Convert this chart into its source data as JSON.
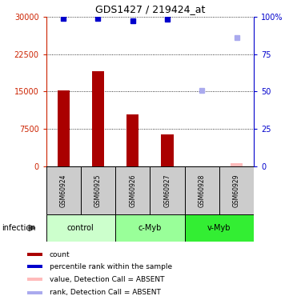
{
  "title": "GDS1427 / 219424_at",
  "samples": [
    "GSM60924",
    "GSM60925",
    "GSM60926",
    "GSM60927",
    "GSM60928",
    "GSM60929"
  ],
  "groups": [
    {
      "name": "control",
      "color": "#ccffcc",
      "start": 0,
      "end": 2
    },
    {
      "name": "c-Myb",
      "color": "#99ff99",
      "start": 2,
      "end": 4
    },
    {
      "name": "v-Myb",
      "color": "#33ee33",
      "start": 4,
      "end": 6
    }
  ],
  "bar_values": [
    15200,
    19000,
    10500,
    6500,
    null,
    null
  ],
  "absent_bar_values": [
    null,
    null,
    null,
    null,
    null,
    700
  ],
  "bar_color_present": "#aa0000",
  "bar_color_absent": "#ffbbbb",
  "dot_values": [
    99,
    99,
    97,
    98,
    null,
    null
  ],
  "absent_dot_values": [
    null,
    null,
    null,
    null,
    51,
    86
  ],
  "dot_color_present": "#0000cc",
  "dot_color_absent": "#aaaaee",
  "ylim_left": [
    0,
    30000
  ],
  "ylim_right": [
    0,
    100
  ],
  "yticks_left": [
    0,
    7500,
    15000,
    22500,
    30000
  ],
  "yticks_right": [
    0,
    25,
    50,
    75,
    100
  ],
  "yticklabels_left": [
    "0",
    "7500",
    "15000",
    "22500",
    "30000"
  ],
  "yticklabels_right": [
    "0",
    "25",
    "50",
    "75",
    "100%"
  ],
  "left_axis_color": "#cc2200",
  "right_axis_color": "#0000cc",
  "sample_area_color": "#cccccc",
  "bar_width": 0.35,
  "legend_items": [
    {
      "label": "count",
      "color": "#aa0000",
      "marker": "s"
    },
    {
      "label": "percentile rank within the sample",
      "color": "#0000cc",
      "marker": "s"
    },
    {
      "label": "value, Detection Call = ABSENT",
      "color": "#ffbbbb",
      "marker": "s"
    },
    {
      "label": "rank, Detection Call = ABSENT",
      "color": "#aaaaee",
      "marker": "s"
    }
  ],
  "infection_label": "infection"
}
